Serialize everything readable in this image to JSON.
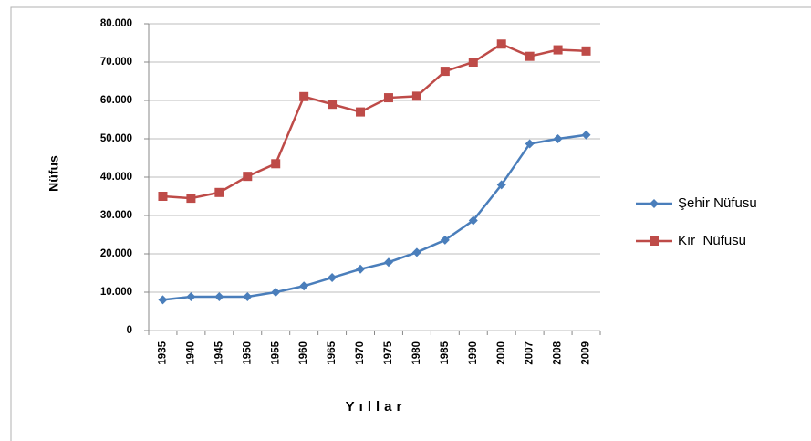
{
  "chart_data": {
    "type": "line",
    "y_label": "Nüfus",
    "x_label": "Yıllar",
    "categories": [
      "1935",
      "1940",
      "1945",
      "1950",
      "1955",
      "1960",
      "1965",
      "1970",
      "1975",
      "1980",
      "1985",
      "1990",
      "2000",
      "2007",
      "2008",
      "2009"
    ],
    "series": [
      {
        "name": "Şehir Nüfusu",
        "color": "#4a7ebb",
        "marker": "diamond",
        "values": [
          8000,
          8800,
          8800,
          8800,
          10000,
          11600,
          13800,
          16000,
          17800,
          20400,
          23600,
          28700,
          38000,
          48700,
          50000,
          51000
        ]
      },
      {
        "name": "Kır  Nüfusu",
        "color": "#be4b48",
        "marker": "square",
        "values": [
          35000,
          34500,
          36000,
          40200,
          43500,
          61000,
          59000,
          57000,
          60700,
          61100,
          67600,
          70000,
          74700,
          71500,
          73200,
          72900
        ]
      }
    ],
    "ylim": [
      0,
      80000
    ],
    "yticks": [
      0,
      {
        "value": 10000,
        "label": "10.000"
      },
      {
        "value": 20000,
        "label": "20.000"
      },
      {
        "value": 30000,
        "label": "30.000"
      },
      {
        "value": 40000,
        "label": "40.000"
      },
      {
        "value": 50000,
        "label": "50.000"
      },
      {
        "value": 60000,
        "label": "60.000"
      },
      {
        "value": 70000,
        "label": "70.000"
      },
      {
        "value": 80000,
        "label": "80.000"
      }
    ],
    "grid": true,
    "legend": "right"
  }
}
